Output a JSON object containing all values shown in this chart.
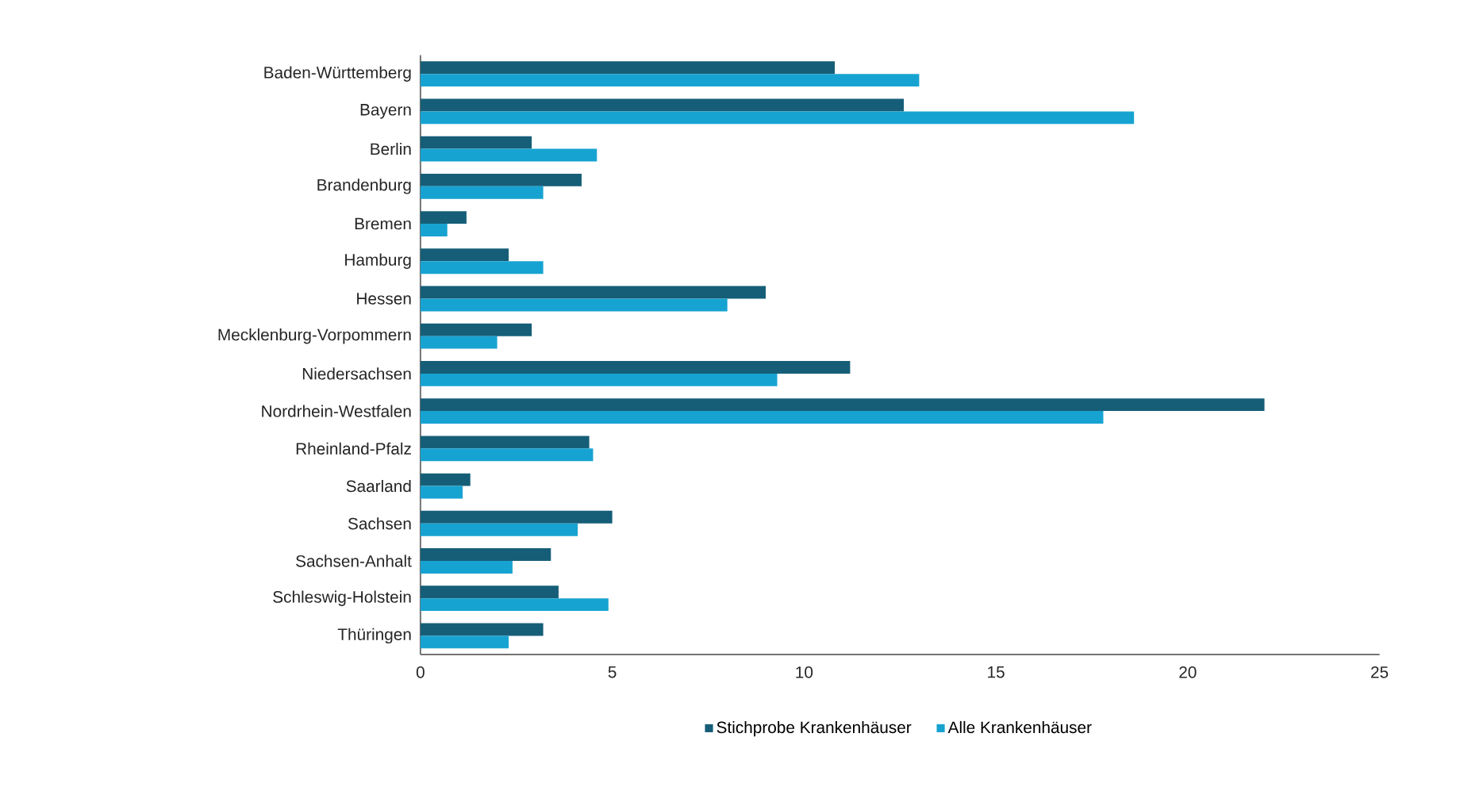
{
  "chart_data": {
    "type": "bar",
    "orientation": "horizontal",
    "categories": [
      "Baden-Württemberg",
      "Bayern",
      "Berlin",
      "Brandenburg",
      "Bremen",
      "Hamburg",
      "Hessen",
      "Mecklenburg-Vorpommern",
      "Niedersachsen",
      "Nordrhein-Westfalen",
      "Rheinland-Pfalz",
      "Saarland",
      "Sachsen",
      "Sachsen-Anhalt",
      "Schleswig-Holstein",
      "Thüringen"
    ],
    "series": [
      {
        "name": "Stichprobe Krankenhäuser",
        "color": "#165e78",
        "values": [
          10.8,
          12.6,
          2.9,
          4.2,
          1.2,
          2.3,
          9.0,
          2.9,
          11.2,
          22.0,
          4.4,
          1.3,
          5.0,
          3.4,
          3.6,
          3.2
        ]
      },
      {
        "name": "Alle Krankenhäuser",
        "color": "#17a3d1",
        "values": [
          13.0,
          18.6,
          4.6,
          3.2,
          0.7,
          3.2,
          8.0,
          2.0,
          9.3,
          17.8,
          4.5,
          1.1,
          4.1,
          2.4,
          4.9,
          2.3
        ]
      }
    ],
    "xlim": [
      0,
      25
    ],
    "xticks": [
      0,
      5,
      10,
      15,
      20,
      25
    ],
    "grid": false,
    "legend": "bottom"
  }
}
